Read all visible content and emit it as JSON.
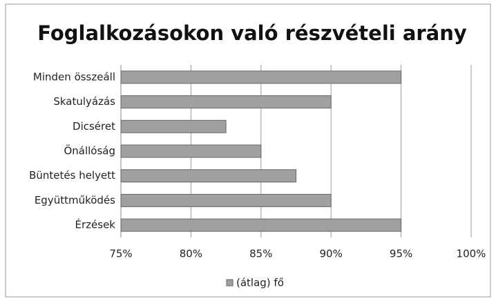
{
  "chart_data": {
    "type": "barh",
    "title": "Foglalkozásokon való részvételi arány",
    "categories": [
      "Minden összeáll",
      "Skatulyázás",
      "Dicséret",
      "Önállóság",
      "Büntetés helyett",
      "Együttműködés",
      "Érzések"
    ],
    "series": [
      {
        "name": "(átlag) fő",
        "color": "#a0a0a0",
        "values": [
          95,
          90,
          82.5,
          85,
          87.5,
          90,
          95
        ]
      }
    ],
    "xlim": [
      75,
      100
    ],
    "xticks": [
      {
        "value": 75,
        "label": "75%"
      },
      {
        "value": 80,
        "label": "80%"
      },
      {
        "value": 85,
        "label": "85%"
      },
      {
        "value": 90,
        "label": "90%"
      },
      {
        "value": 95,
        "label": "95%"
      },
      {
        "value": 100,
        "label": "100%"
      }
    ],
    "grid": true,
    "legend": "bottom"
  }
}
